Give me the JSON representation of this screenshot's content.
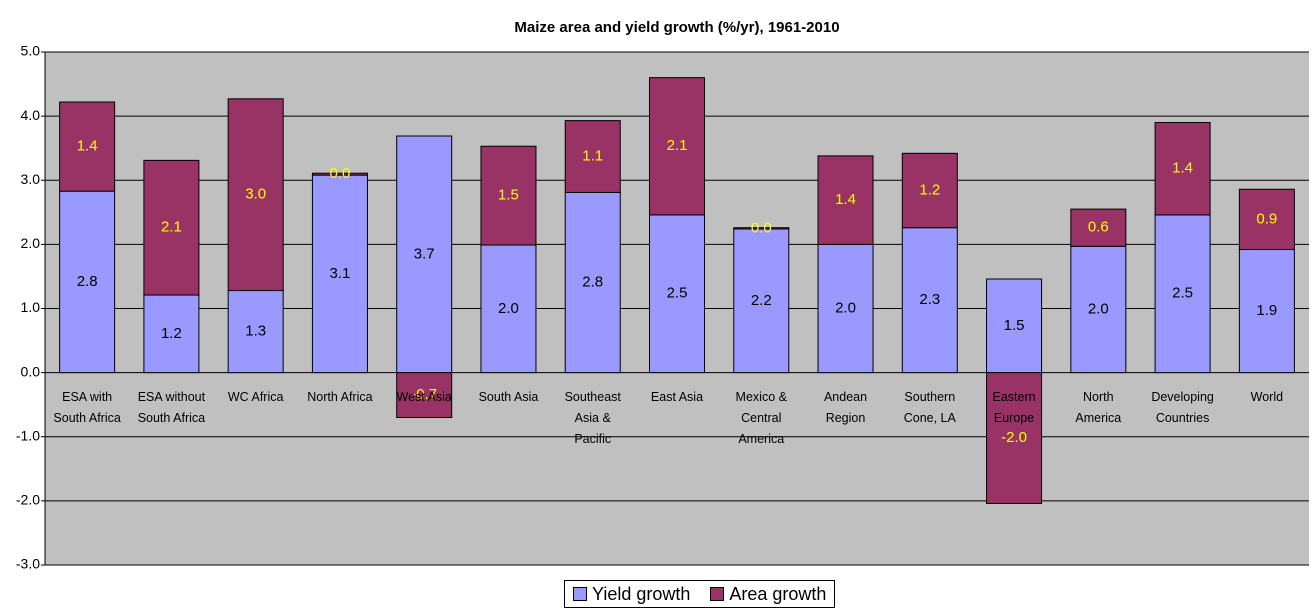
{
  "chart_data": {
    "type": "stacked_bar",
    "title": "Maize area and yield growth (%/yr), 1961-2010",
    "categories": [
      "ESA with South Africa",
      "ESA without South Africa",
      "WC Africa",
      "North Africa",
      "West Asia",
      "South Asia",
      "Southeast Asia & Pacific",
      "East Asia",
      "Mexico & Central America",
      "Andean Region",
      "Southern Cone, LA",
      "Eastern Europe",
      "North America",
      "Developing Countries",
      "World"
    ],
    "series": [
      {
        "name": "Yield growth",
        "color": "#9999ff",
        "values": [
          2.83,
          1.21,
          1.28,
          3.08,
          3.69,
          1.99,
          2.81,
          2.46,
          2.24,
          2.0,
          2.26,
          1.46,
          1.97,
          2.46,
          1.92
        ],
        "value_labels": [
          "2.8",
          "1.2",
          "1.3",
          "3.1",
          "3.7",
          "2.0",
          "2.8",
          "2.5",
          "2.2",
          "2.0",
          "2.3",
          "1.5",
          "2.0",
          "2.5",
          "1.9"
        ]
      },
      {
        "name": "Area growth",
        "color": "#993366",
        "values": [
          1.39,
          2.1,
          2.99,
          0.03,
          -0.7,
          1.54,
          1.12,
          2.14,
          0.02,
          1.38,
          1.16,
          -2.04,
          0.58,
          1.44,
          0.94
        ],
        "value_labels": [
          "1.4",
          "2.1",
          "3.0",
          "0.0",
          "-0.7",
          "1.5",
          "1.1",
          "2.1",
          "0.0",
          "1.4",
          "1.2",
          "-2.0",
          "0.6",
          "1.4",
          "0.9"
        ]
      }
    ],
    "ylim": [
      -3,
      5
    ],
    "yticks": [
      {
        "value": -3,
        "label": "-3.0"
      },
      {
        "value": -2,
        "label": "-2.0"
      },
      {
        "value": -1,
        "label": "-1.0"
      },
      {
        "value": 0,
        "label": "0.0"
      },
      {
        "value": 1,
        "label": "1.0"
      },
      {
        "value": 2,
        "label": "2.0"
      },
      {
        "value": 3,
        "label": "3.0"
      },
      {
        "value": 4,
        "label": "4.0"
      },
      {
        "value": 5,
        "label": "5.0"
      }
    ],
    "grid": true,
    "legend": "bottom"
  }
}
